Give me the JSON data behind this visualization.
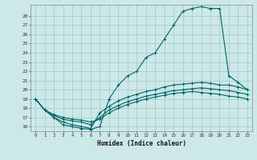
{
  "xlabel": "Humidex (Indice chaleur)",
  "background_color": "#cce8e8",
  "grid_color": "#aacccc",
  "line_color": "#006666",
  "xlim": [
    -0.5,
    23.5
  ],
  "ylim": [
    15.5,
    29.2
  ],
  "yticks": [
    16,
    17,
    18,
    19,
    20,
    21,
    22,
    23,
    24,
    25,
    26,
    27,
    28
  ],
  "xticks": [
    0,
    1,
    2,
    3,
    4,
    5,
    6,
    7,
    8,
    9,
    10,
    11,
    12,
    13,
    14,
    15,
    16,
    17,
    18,
    19,
    20,
    21,
    22,
    23
  ],
  "series0_x": [
    0,
    1,
    2,
    3,
    4,
    5,
    6,
    7,
    8,
    9,
    10,
    11,
    12,
    13,
    14,
    15,
    16,
    17,
    18,
    19,
    20,
    21,
    22,
    23
  ],
  "series0_y": [
    19.0,
    17.8,
    17.0,
    16.2,
    16.0,
    15.8,
    15.7,
    16.0,
    19.0,
    20.5,
    21.5,
    22.0,
    23.5,
    24.0,
    25.5,
    27.0,
    28.5,
    28.8,
    29.0,
    28.8,
    28.8,
    21.5,
    20.8,
    20.0
  ],
  "series1_x": [
    0,
    1,
    2,
    3,
    4,
    5,
    6,
    7,
    8,
    9,
    10,
    11,
    12,
    13,
    14,
    15,
    16,
    17,
    18,
    19,
    20,
    21,
    22,
    23
  ],
  "series1_y": [
    19.0,
    17.8,
    17.0,
    16.5,
    16.2,
    16.0,
    15.8,
    17.5,
    18.2,
    18.8,
    19.2,
    19.5,
    19.8,
    20.0,
    20.3,
    20.5,
    20.6,
    20.7,
    20.8,
    20.7,
    20.5,
    20.5,
    20.3,
    20.0
  ],
  "series2_x": [
    0,
    1,
    2,
    3,
    4,
    5,
    6,
    7,
    8,
    9,
    10,
    11,
    12,
    13,
    14,
    15,
    16,
    17,
    18,
    19,
    20,
    21,
    22,
    23
  ],
  "series2_y": [
    19.0,
    17.8,
    17.2,
    16.8,
    16.6,
    16.5,
    16.2,
    17.0,
    17.8,
    18.3,
    18.7,
    19.0,
    19.3,
    19.5,
    19.7,
    19.9,
    20.0,
    20.1,
    20.2,
    20.1,
    20.0,
    19.9,
    19.7,
    19.5
  ],
  "series3_x": [
    0,
    1,
    2,
    3,
    4,
    5,
    6,
    7,
    8,
    9,
    10,
    11,
    12,
    13,
    14,
    15,
    16,
    17,
    18,
    19,
    20,
    21,
    22,
    23
  ],
  "series3_y": [
    19.0,
    17.8,
    17.3,
    17.0,
    16.8,
    16.7,
    16.5,
    16.8,
    17.5,
    18.0,
    18.4,
    18.7,
    19.0,
    19.2,
    19.4,
    19.6,
    19.7,
    19.8,
    19.7,
    19.6,
    19.5,
    19.3,
    19.2,
    19.0
  ]
}
